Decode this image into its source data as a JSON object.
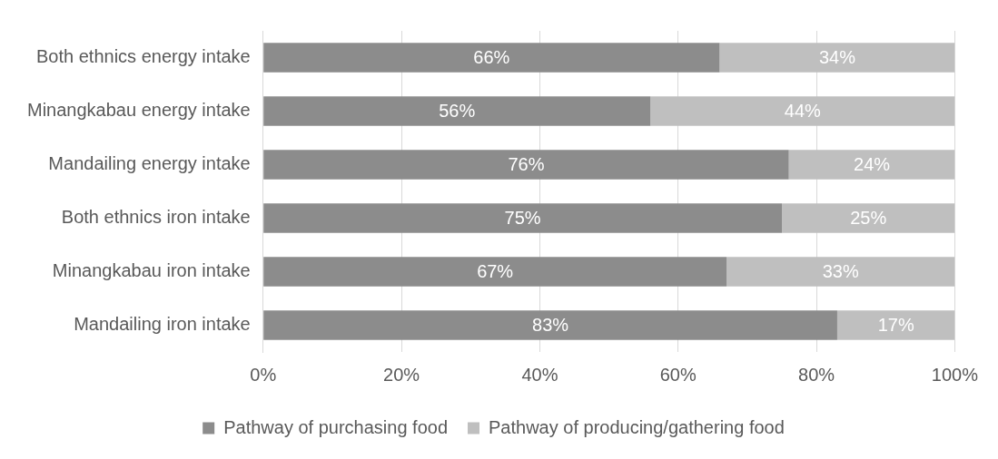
{
  "chart_data": {
    "type": "bar",
    "orientation": "horizontal",
    "stacked": true,
    "categories": [
      "Both ethnics energy intake",
      "Minangkabau energy intake",
      "Mandailing energy intake",
      "Both ethnics iron intake",
      "Minangkabau iron intake",
      "Mandailing iron intake"
    ],
    "series": [
      {
        "name": "Pathway of purchasing food",
        "color": "#8c8c8c",
        "values": [
          66,
          56,
          76,
          75,
          67,
          83
        ],
        "value_labels": [
          "66%",
          "56%",
          "76%",
          "75%",
          "67%",
          "83%"
        ]
      },
      {
        "name": "Pathway of producing/gathering food",
        "color": "#bfbfbf",
        "values": [
          34,
          44,
          24,
          25,
          33,
          17
        ],
        "value_labels": [
          "34%",
          "44%",
          "24%",
          "25%",
          "33%",
          "17%"
        ]
      }
    ],
    "xlim": [
      0,
      100
    ],
    "xticks": [
      {
        "value": 0,
        "label": "0%"
      },
      {
        "value": 20,
        "label": "20%"
      },
      {
        "value": 40,
        "label": "40%"
      },
      {
        "value": 60,
        "label": "60%"
      },
      {
        "value": 80,
        "label": "80%"
      },
      {
        "value": 100,
        "label": "100%"
      }
    ],
    "grid": "x",
    "legend": "bottom"
  }
}
